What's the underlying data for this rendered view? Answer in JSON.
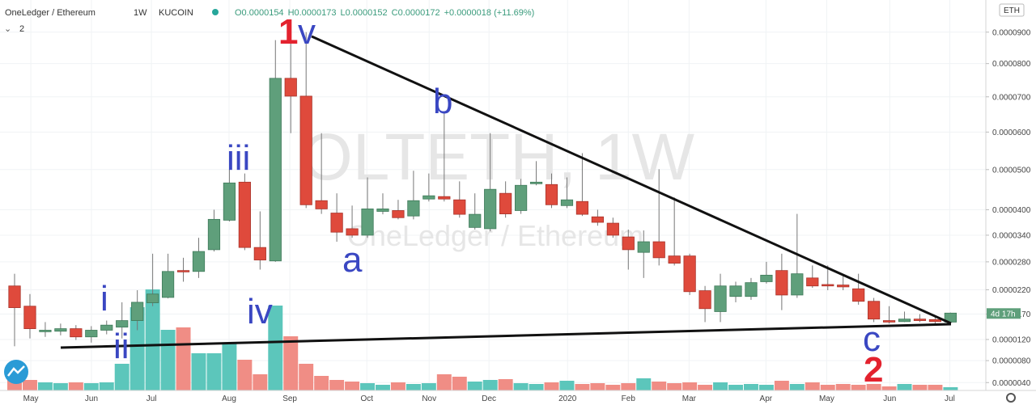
{
  "chart_data": {
    "type": "candlestick",
    "title": "OneLedger / Ethereum",
    "interval": "1W",
    "exchange": "KUCOIN",
    "legend_values": [
      "O0.0000154",
      "H0.0000173",
      "L0.0000152",
      "C0.0000172"
    ],
    "change": "+0.0000018 (+11.69%)",
    "indicator_count": "2",
    "currency": "ETH",
    "countdown": "4d 17h",
    "watermark": "OLTETH, 1W",
    "up_color": "#5f9f7b",
    "down_color": "#df4a3c",
    "volume_up_color": "#5cc6bb",
    "volume_down_color": "#f08d85",
    "annotations": [
      {
        "text": "1",
        "color": "#e3222e"
      },
      {
        "text": "v",
        "color": "#3a47c2"
      },
      {
        "text": "b",
        "color": "#3a47c2"
      },
      {
        "text": "iii",
        "color": "#3a47c2"
      },
      {
        "text": "a",
        "color": "#3a47c2"
      },
      {
        "text": "i",
        "color": "#3a47c2"
      },
      {
        "text": "ii",
        "color": "#3a47c2"
      },
      {
        "text": "iv",
        "color": "#3a47c2"
      },
      {
        "text": "c",
        "color": "#3a47c2"
      },
      {
        "text": "2",
        "color": "#e3222e"
      }
    ],
    "xlim": [
      -0.95,
      63.3
    ],
    "xticks": [
      {
        "value": 1.06,
        "label": "May"
      },
      {
        "value": 5.01,
        "label": "Jun"
      },
      {
        "value": 8.92,
        "label": "Jul"
      },
      {
        "value": 13.98,
        "label": "Aug"
      },
      {
        "value": 17.94,
        "label": "Sep"
      },
      {
        "value": 22.96,
        "label": "Oct"
      },
      {
        "value": 27.02,
        "label": "Nov"
      },
      {
        "value": 30.92,
        "label": "Dec"
      },
      {
        "value": 36.04,
        "label": "2020"
      },
      {
        "value": 40.0,
        "label": "Feb"
      },
      {
        "value": 43.96,
        "label": "Mar"
      },
      {
        "value": 48.97,
        "label": "Apr"
      },
      {
        "value": 52.93,
        "label": "May"
      },
      {
        "value": 57.04,
        "label": "Jun"
      },
      {
        "value": 60.95,
        "label": "Jul"
      }
    ],
    "ylim": [
      2.6e-06,
      0.0001008
    ],
    "yticks": [
      {
        "value": 9e-05,
        "label": "0.0000900"
      },
      {
        "value": 8e-05,
        "label": "0.0000800"
      },
      {
        "value": 7e-05,
        "label": "0.0000700"
      },
      {
        "value": 6e-05,
        "label": "0.0000600"
      },
      {
        "value": 5e-05,
        "label": "0.0000500"
      },
      {
        "value": 4e-05,
        "label": "0.0000400"
      },
      {
        "value": 3.4e-05,
        "label": "0.0000340"
      },
      {
        "value": 2.8e-05,
        "label": "0.0000280"
      },
      {
        "value": 2.2e-05,
        "label": "0.0000220"
      },
      {
        "value": 1.7e-05,
        "label": "0.0000170"
      },
      {
        "value": 1.2e-05,
        "label": "0.0000120"
      },
      {
        "value": 8e-06,
        "label": "0.0000080"
      },
      {
        "value": 4e-06,
        "label": "0.0000040"
      }
    ],
    "candles": [
      {
        "o": 2.28e-05,
        "h": 2.54e-05,
        "l": 1.07e-05,
        "c": 1.83e-05
      },
      {
        "o": 1.86e-05,
        "h": 2.11e-05,
        "l": 1.22e-05,
        "c": 1.41e-05
      },
      {
        "o": 1.35e-05,
        "h": 1.54e-05,
        "l": 1.25e-05,
        "c": 1.38e-05
      },
      {
        "o": 1.36e-05,
        "h": 1.51e-05,
        "l": 1.28e-05,
        "c": 1.41e-05
      },
      {
        "o": 1.41e-05,
        "h": 1.48e-05,
        "l": 1.19e-05,
        "c": 1.25e-05
      },
      {
        "o": 1.25e-05,
        "h": 1.46e-05,
        "l": 1.14e-05,
        "c": 1.38e-05
      },
      {
        "o": 1.38e-05,
        "h": 1.57e-05,
        "l": 1.3e-05,
        "c": 1.48e-05
      },
      {
        "o": 1.44e-05,
        "h": 1.94e-05,
        "l": 1.22e-05,
        "c": 1.57e-05
      },
      {
        "o": 1.57e-05,
        "h": 2.19e-05,
        "l": 1.38e-05,
        "c": 1.94e-05
      },
      {
        "o": 1.93e-05,
        "h": 2.98e-05,
        "l": 1.86e-05,
        "c": 2.11e-05
      },
      {
        "o": 2.04e-05,
        "h": 2.98e-05,
        "l": 2.02e-05,
        "c": 2.59e-05
      },
      {
        "o": 2.61e-05,
        "h": 2.89e-05,
        "l": 2.37e-05,
        "c": 2.58e-05
      },
      {
        "o": 2.59e-05,
        "h": 3.34e-05,
        "l": 2.45e-05,
        "c": 3.03e-05
      },
      {
        "o": 3.07e-05,
        "h": 4e-05,
        "l": 3.03e-05,
        "c": 3.77e-05
      },
      {
        "o": 3.75e-05,
        "h": 5.01e-05,
        "l": 3.72e-05,
        "c": 4.66e-05
      },
      {
        "o": 4.68e-05,
        "h": 4.9e-05,
        "l": 3.06e-05,
        "c": 3.12e-05
      },
      {
        "o": 3.12e-05,
        "h": 3.96e-05,
        "l": 2.63e-05,
        "c": 2.84e-05
      },
      {
        "o": 2.82e-05,
        "h": 8.74e-05,
        "l": 2.8e-05,
        "c": 7.55e-05
      },
      {
        "o": 7.55e-05,
        "h": 9e-05,
        "l": 5.97e-05,
        "c": 7.02e-05
      },
      {
        "o": 7.02e-05,
        "h": 9e-05,
        "l": 4.04e-05,
        "c": 4.12e-05
      },
      {
        "o": 4.22e-05,
        "h": 5.97e-05,
        "l": 3.9e-05,
        "c": 4.02e-05
      },
      {
        "o": 3.92e-05,
        "h": 4.4e-05,
        "l": 3.25e-05,
        "c": 3.47e-05
      },
      {
        "o": 3.55e-05,
        "h": 4.1e-05,
        "l": 3.34e-05,
        "c": 3.4e-05
      },
      {
        "o": 3.4e-05,
        "h": 4.8e-05,
        "l": 3.34e-05,
        "c": 4.02e-05
      },
      {
        "o": 3.96e-05,
        "h": 4.4e-05,
        "l": 3.89e-05,
        "c": 4.02e-05
      },
      {
        "o": 3.98e-05,
        "h": 4.24e-05,
        "l": 3.77e-05,
        "c": 3.81e-05
      },
      {
        "o": 3.85e-05,
        "h": 4.97e-05,
        "l": 3.77e-05,
        "c": 4.22e-05
      },
      {
        "o": 4.26e-05,
        "h": 4.9e-05,
        "l": 4.2e-05,
        "c": 4.34e-05
      },
      {
        "o": 4.32e-05,
        "h": 6.54e-05,
        "l": 4.2e-05,
        "c": 4.26e-05
      },
      {
        "o": 4.24e-05,
        "h": 4.7e-05,
        "l": 3.81e-05,
        "c": 3.89e-05
      },
      {
        "o": 3.58e-05,
        "h": 4.4e-05,
        "l": 3.53e-05,
        "c": 3.89e-05
      },
      {
        "o": 3.55e-05,
        "h": 5.97e-05,
        "l": 3.49e-05,
        "c": 4.5e-05
      },
      {
        "o": 4.4e-05,
        "h": 4.7e-05,
        "l": 3.81e-05,
        "c": 3.9e-05
      },
      {
        "o": 3.98e-05,
        "h": 4.76e-05,
        "l": 3.9e-05,
        "c": 4.6e-05
      },
      {
        "o": 4.64e-05,
        "h": 5.22e-05,
        "l": 4.6e-05,
        "c": 4.68e-05
      },
      {
        "o": 4.62e-05,
        "h": 4.9e-05,
        "l": 4.04e-05,
        "c": 4.12e-05
      },
      {
        "o": 4.1e-05,
        "h": 4.8e-05,
        "l": 4.04e-05,
        "c": 4.24e-05
      },
      {
        "o": 4.2e-05,
        "h": 5.43e-05,
        "l": 3.85e-05,
        "c": 3.89e-05
      },
      {
        "o": 3.83e-05,
        "h": 4e-05,
        "l": 3.62e-05,
        "c": 3.7e-05
      },
      {
        "o": 3.68e-05,
        "h": 3.81e-05,
        "l": 3.34e-05,
        "c": 3.4e-05
      },
      {
        "o": 3.36e-05,
        "h": 3.53e-05,
        "l": 2.63e-05,
        "c": 3.07e-05
      },
      {
        "o": 3.01e-05,
        "h": 3.51e-05,
        "l": 2.45e-05,
        "c": 3.25e-05
      },
      {
        "o": 3.25e-05,
        "h": 5.01e-05,
        "l": 2.72e-05,
        "c": 2.89e-05
      },
      {
        "o": 2.93e-05,
        "h": 4.3e-05,
        "l": 2.72e-05,
        "c": 2.77e-05
      },
      {
        "o": 2.93e-05,
        "h": 2.98e-05,
        "l": 2.09e-05,
        "c": 2.16e-05
      },
      {
        "o": 2.18e-05,
        "h": 2.28e-05,
        "l": 1.54e-05,
        "c": 1.81e-05
      },
      {
        "o": 1.75e-05,
        "h": 2.54e-05,
        "l": 1.54e-05,
        "c": 2.28e-05
      },
      {
        "o": 2.06e-05,
        "h": 2.37e-05,
        "l": 1.94e-05,
        "c": 2.28e-05
      },
      {
        "o": 2.06e-05,
        "h": 2.45e-05,
        "l": 1.99e-05,
        "c": 2.35e-05
      },
      {
        "o": 2.37e-05,
        "h": 2.8e-05,
        "l": 2.33e-05,
        "c": 2.51e-05
      },
      {
        "o": 2.61e-05,
        "h": 2.98e-05,
        "l": 1.78e-05,
        "c": 2.09e-05
      },
      {
        "o": 2.09e-05,
        "h": 3.9e-05,
        "l": 2.03e-05,
        "c": 2.54e-05
      },
      {
        "o": 2.45e-05,
        "h": 2.72e-05,
        "l": 2.24e-05,
        "c": 2.28e-05
      },
      {
        "o": 2.31e-05,
        "h": 2.72e-05,
        "l": 2.19e-05,
        "c": 2.28e-05
      },
      {
        "o": 2.3e-05,
        "h": 2.51e-05,
        "l": 2.19e-05,
        "c": 2.26e-05
      },
      {
        "o": 2.22e-05,
        "h": 2.54e-05,
        "l": 1.89e-05,
        "c": 1.96e-05
      },
      {
        "o": 1.96e-05,
        "h": 2.03e-05,
        "l": 1.54e-05,
        "c": 1.6e-05
      },
      {
        "o": 1.57e-05,
        "h": 1.86e-05,
        "l": 1.51e-05,
        "c": 1.54e-05
      },
      {
        "o": 1.55e-05,
        "h": 1.75e-05,
        "l": 1.54e-05,
        "c": 1.6e-05
      },
      {
        "o": 1.6e-05,
        "h": 1.7e-05,
        "l": 1.54e-05,
        "c": 1.57e-05
      },
      {
        "o": 1.59e-05,
        "h": 1.67e-05,
        "l": 1.51e-05,
        "c": 1.55e-05
      },
      {
        "o": 1.54e-05,
        "h": 1.73e-05,
        "l": 1.52e-05,
        "c": 1.72e-05
      }
    ],
    "volumes": [
      21,
      13,
      10,
      9,
      10,
      9,
      10,
      33,
      103,
      125,
      75,
      78,
      46,
      46,
      58,
      38,
      20,
      105,
      67,
      33,
      18,
      13,
      11,
      9,
      7,
      10,
      8,
      9,
      20,
      17,
      11,
      13,
      14,
      9,
      8,
      10,
      12,
      8,
      9,
      7,
      9,
      15,
      11,
      9,
      10,
      7,
      10,
      7,
      8,
      7,
      12,
      8,
      10,
      7,
      8,
      7,
      8,
      5,
      8,
      7,
      7,
      4
    ]
  }
}
